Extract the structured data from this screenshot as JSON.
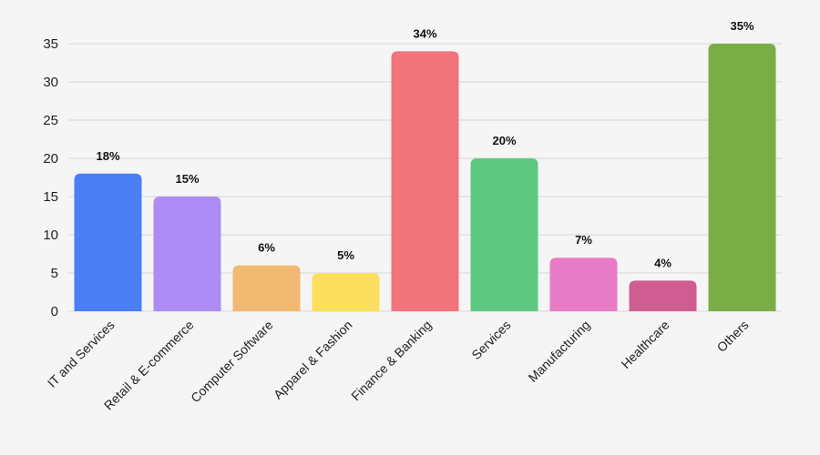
{
  "chart_data": {
    "type": "bar",
    "categories": [
      "IT and Services",
      "Retail & E-commerce",
      "Computer Software",
      "Apparel & Fashion",
      "Finance & Banking",
      "Services",
      "Manufacturing",
      "Healthcare",
      "Others"
    ],
    "values": [
      18,
      15,
      6,
      5,
      34,
      20,
      7,
      4,
      35
    ],
    "data_labels": [
      "18%",
      "15%",
      "6%",
      "5%",
      "34%",
      "20%",
      "7%",
      "4%",
      "35%"
    ],
    "colors": [
      "#4a7ff5",
      "#ad8cf5",
      "#f2b973",
      "#fddf5e",
      "#f07479",
      "#5ec880",
      "#e87bc6",
      "#cf5d92",
      "#7aad45"
    ],
    "yticks": [
      0,
      5,
      10,
      15,
      20,
      25,
      30,
      35
    ],
    "ylim": [
      0,
      35
    ],
    "title": "",
    "xlabel": "",
    "ylabel": "",
    "grid": true,
    "legend": "none"
  }
}
